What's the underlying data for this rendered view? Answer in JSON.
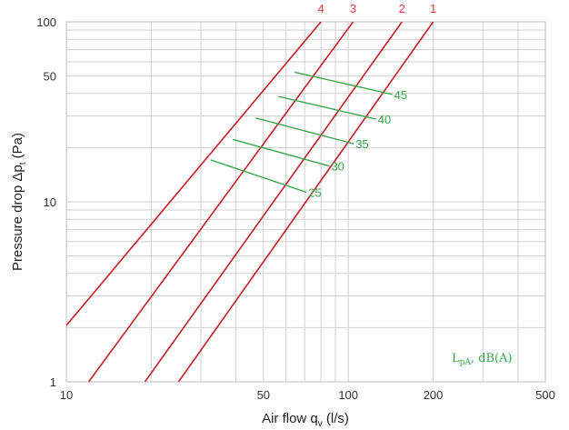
{
  "chart_data": {
    "type": "line",
    "x_scale": "log",
    "y_scale": "log",
    "xlim": [
      10,
      500
    ],
    "ylim": [
      1,
      100
    ],
    "xlabel": "Air flow q",
    "xlabel_sub": "v",
    "xlabel_unit": " (l/s)",
    "ylabel": "Pressure drop Δp",
    "ylabel_sub": "t",
    "ylabel_unit": " (Pa)",
    "x_ticks": [
      {
        "value": 10,
        "label": "10"
      },
      {
        "value": 50,
        "label": "50"
      },
      {
        "value": 100,
        "label": "100"
      },
      {
        "value": 200,
        "label": "200"
      },
      {
        "value": 500,
        "label": "500"
      }
    ],
    "y_ticks": [
      {
        "value": 1,
        "label": "1"
      },
      {
        "value": 10,
        "label": "10"
      },
      {
        "value": 50,
        "label": "50"
      },
      {
        "value": 100,
        "label": "100"
      }
    ],
    "grid": true,
    "series_color": "#c41e24",
    "series_label_color": "#e8393a",
    "series": [
      {
        "label": "1",
        "points": [
          [
            25,
            1
          ],
          [
            200,
            100
          ]
        ]
      },
      {
        "label": "2",
        "points": [
          [
            19,
            1
          ],
          [
            155,
            100
          ]
        ]
      },
      {
        "label": "3",
        "points": [
          [
            12,
            1
          ],
          [
            104,
            100
          ]
        ]
      },
      {
        "label": "4",
        "points": [
          [
            6.8,
            1
          ],
          [
            80,
            100
          ]
        ]
      }
    ],
    "sound_color": "#3aa64a",
    "sound_lines": [
      {
        "label": "25",
        "points": [
          [
            32.5,
            17.1
          ],
          [
            68.0,
            11.3
          ]
        ]
      },
      {
        "label": "30",
        "points": [
          [
            39.0,
            22.2
          ],
          [
            82.0,
            15.8
          ]
        ]
      },
      {
        "label": "35",
        "points": [
          [
            47.0,
            29.2
          ],
          [
            100.0,
            21.0
          ]
        ]
      },
      {
        "label": "40",
        "points": [
          [
            56.5,
            38.5
          ],
          [
            120.0,
            28.8
          ]
        ]
      },
      {
        "label": "45",
        "points": [
          [
            64.5,
            52.5
          ],
          [
            137.0,
            39.5
          ]
        ]
      }
    ],
    "annotation": {
      "text_main": "L",
      "text_sub": "pA",
      "text_rest": ", dB(A)"
    }
  }
}
